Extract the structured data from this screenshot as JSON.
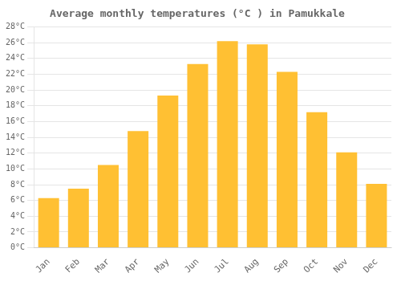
{
  "chart_data": {
    "type": "bar",
    "title": "Average monthly temperatures (°C ) in Pamukkale",
    "categories": [
      "Jan",
      "Feb",
      "Mar",
      "Apr",
      "May",
      "Jun",
      "Jul",
      "Aug",
      "Sep",
      "Oct",
      "Nov",
      "Dec"
    ],
    "values": [
      6.3,
      7.5,
      10.5,
      14.8,
      19.3,
      23.3,
      26.2,
      25.8,
      22.3,
      17.2,
      12.1,
      8.1
    ],
    "color": "#FFC033",
    "ylim": [
      0,
      28
    ],
    "yticks": [
      {
        "value": 0,
        "label": "0°C"
      },
      {
        "value": 2,
        "label": "2°C"
      },
      {
        "value": 4,
        "label": "4°C"
      },
      {
        "value": 6,
        "label": "6°C"
      },
      {
        "value": 8,
        "label": "8°C"
      },
      {
        "value": 10,
        "label": "10°C"
      },
      {
        "value": 12,
        "label": "12°C"
      },
      {
        "value": 14,
        "label": "14°C"
      },
      {
        "value": 16,
        "label": "16°C"
      },
      {
        "value": 18,
        "label": "18°C"
      },
      {
        "value": 20,
        "label": "20°C"
      },
      {
        "value": 22,
        "label": "22°C"
      },
      {
        "value": 24,
        "label": "24°C"
      },
      {
        "value": 26,
        "label": "26°C"
      },
      {
        "value": 28,
        "label": "28°C"
      }
    ],
    "grid": true
  }
}
